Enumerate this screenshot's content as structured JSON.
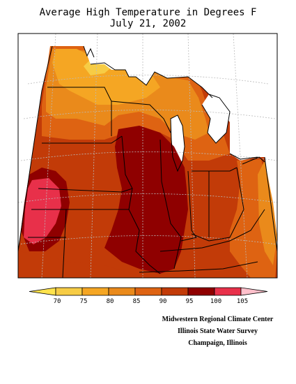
{
  "title": {
    "line1": "Average High Temperature in Degrees F",
    "line2": "July 21, 2002"
  },
  "legend": {
    "bins": [
      {
        "label": "",
        "color": "#ffe34d"
      },
      {
        "label": "70",
        "color": "#f7cc45"
      },
      {
        "label": "75",
        "color": "#f5a623"
      },
      {
        "label": "80",
        "color": "#ea8a1b"
      },
      {
        "label": "85",
        "color": "#de6312"
      },
      {
        "label": "90",
        "color": "#c23b08"
      },
      {
        "label": "95",
        "color": "#8f0000"
      },
      {
        "label": "100",
        "color": "#e8304a"
      },
      {
        "label": "105",
        "color": "#ffc0cb"
      }
    ]
  },
  "credits": {
    "line1": "Midwestern Regional Climate Center",
    "line2": "Illinois State Water Survey",
    "line3": "Champaign, Illinois"
  }
}
